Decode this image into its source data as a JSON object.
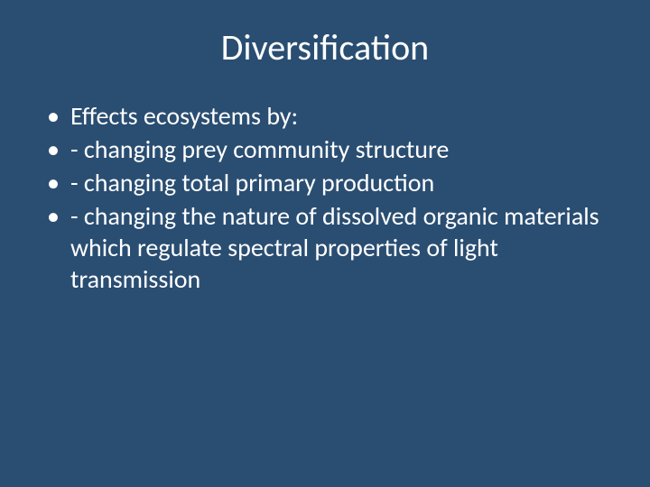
{
  "slide": {
    "background_color": "#2a4e72",
    "text_color": "#ffffff",
    "title": "Diversification",
    "title_fontsize": 40,
    "body_fontsize": 28,
    "line_height": 1.25,
    "bullets": [
      "Effects ecosystems by:",
      "- changing prey community structure",
      "- changing total primary production",
      "- changing the nature of dissolved organic materials which regulate spectral properties of light transmission"
    ]
  }
}
